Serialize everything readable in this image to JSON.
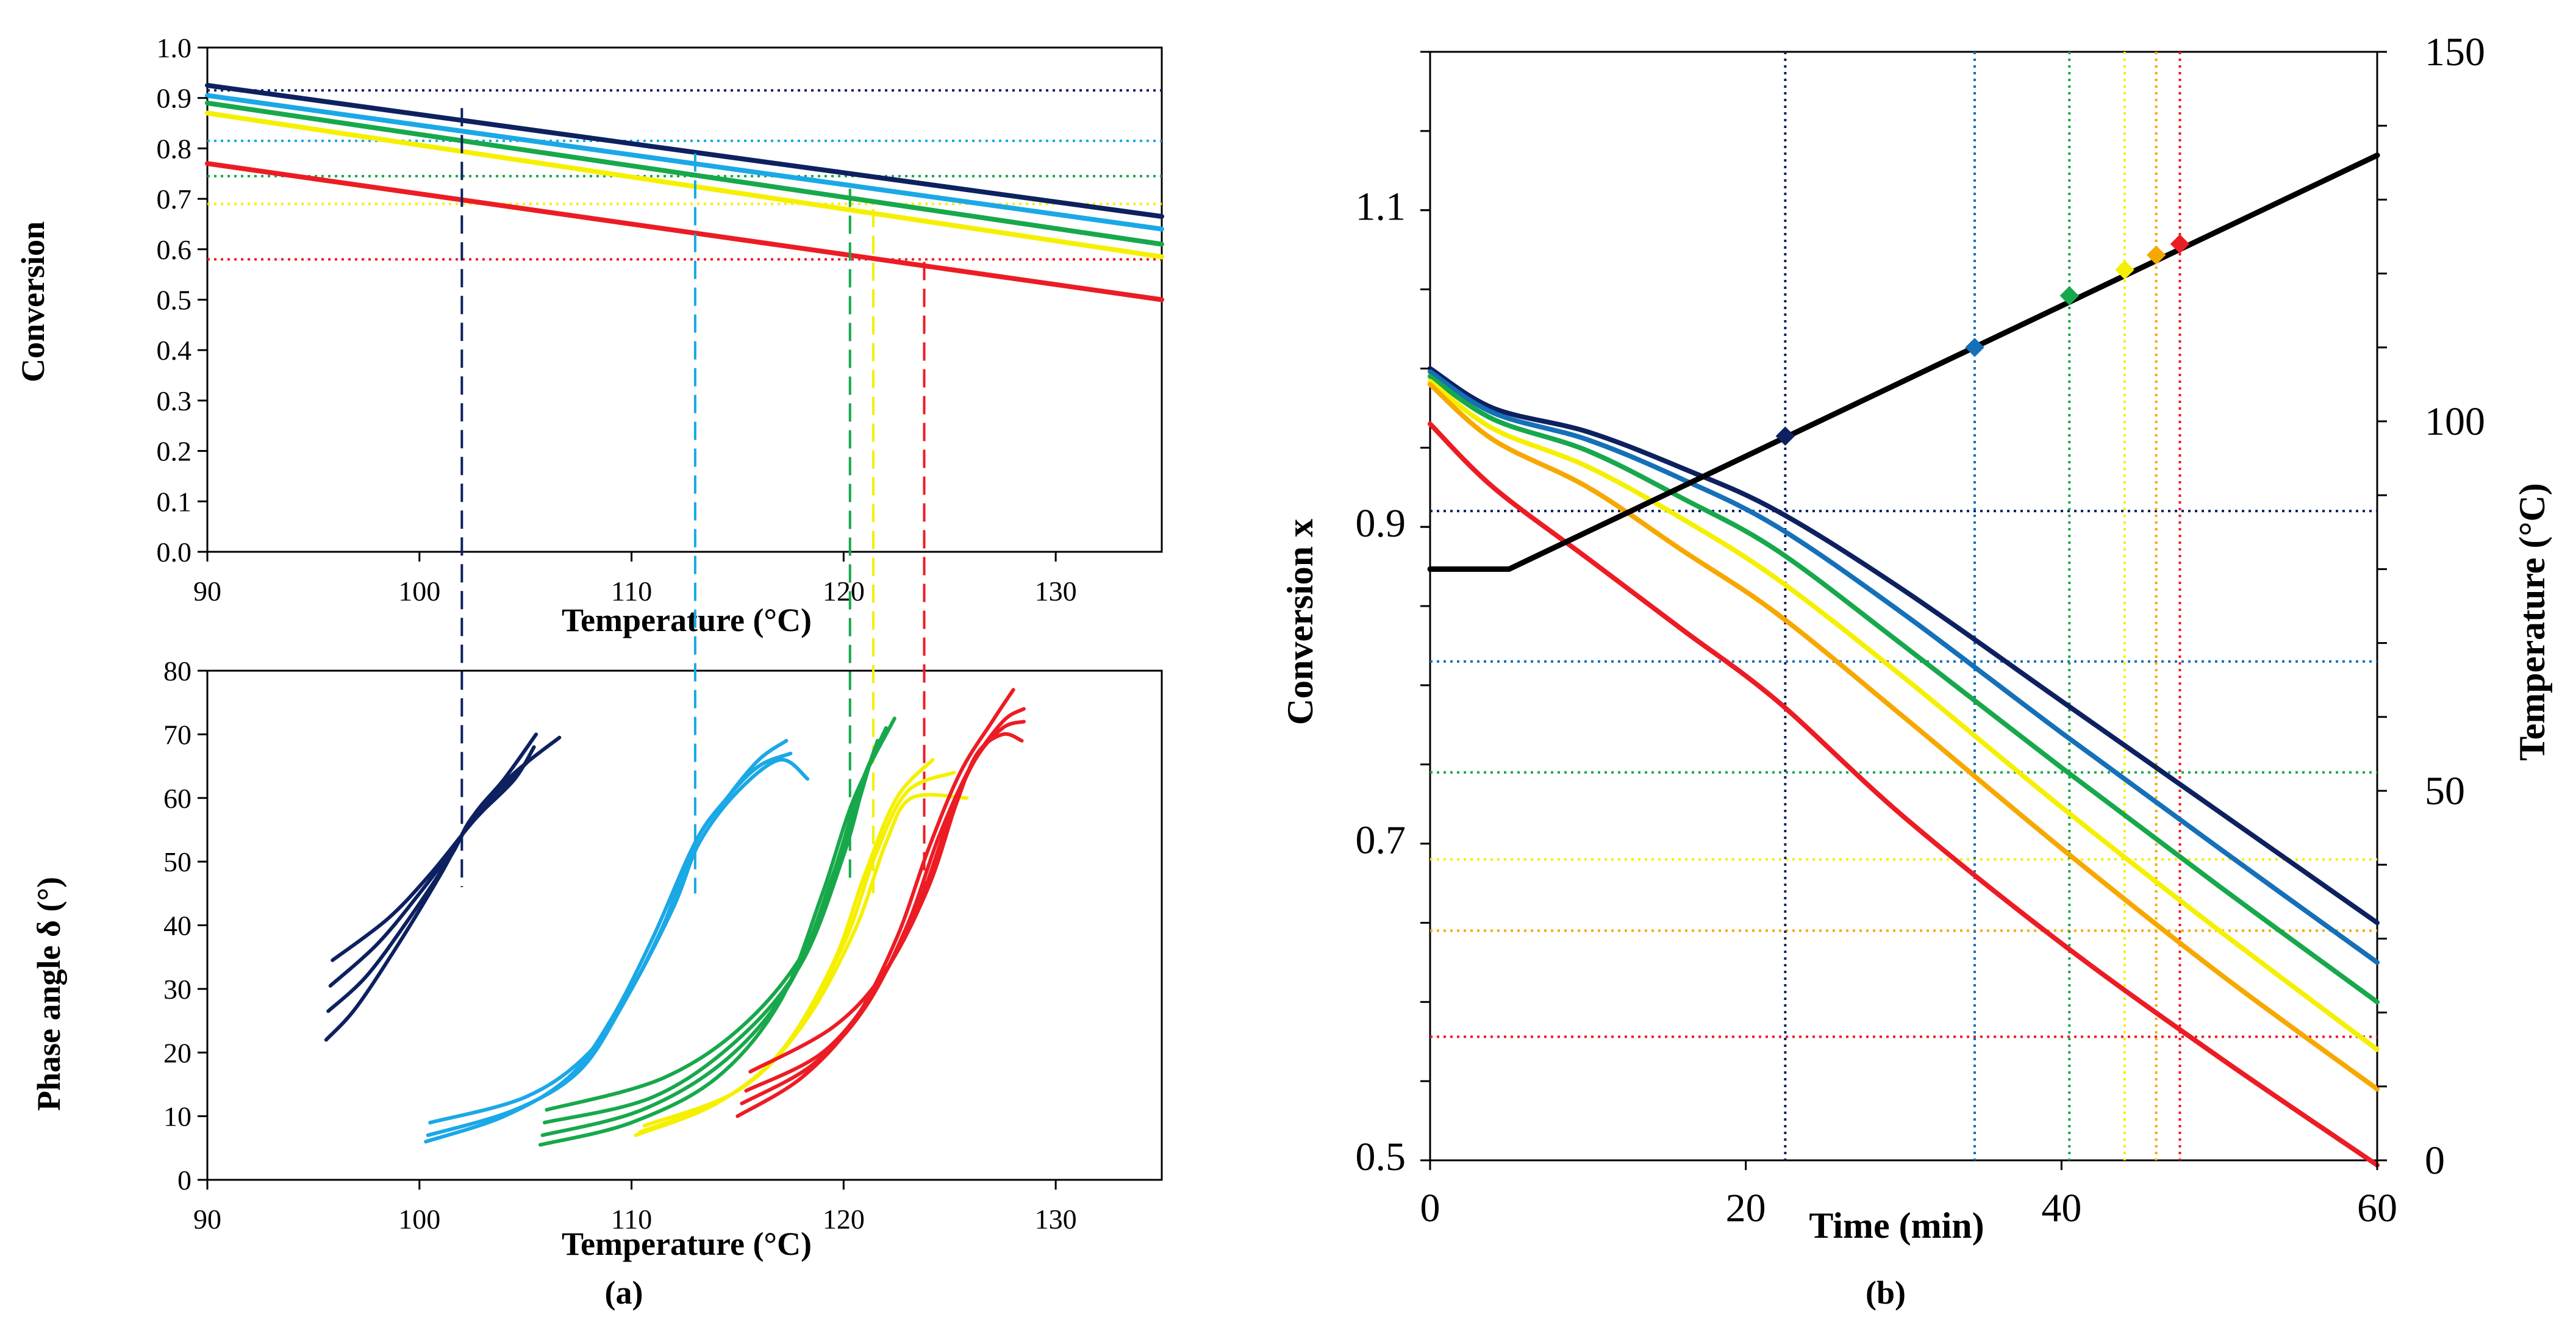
{
  "colors": {
    "navy": "#0d2160",
    "lightblue": "#1aa8e6",
    "mediumblue": "#1570b8",
    "green": "#17a84b",
    "yellow": "#f5f000",
    "orange": "#f7a800",
    "red": "#ec1c24",
    "black": "#000000"
  },
  "panel_labels": {
    "a": "(a)",
    "b": "(b)"
  },
  "chart_data": [
    {
      "id": "a-top",
      "type": "line",
      "xlabel": "Temperature (°C)",
      "ylabel": "Conversion",
      "xlim": [
        90,
        135
      ],
      "ylim": [
        0,
        1
      ],
      "xticks": [
        90,
        100,
        110,
        120,
        130
      ],
      "yticks": [
        "0.0",
        "0.1",
        "0.2",
        "0.3",
        "0.4",
        "0.5",
        "0.6",
        "0.7",
        "0.8",
        "0.9",
        "1.0"
      ],
      "grid": false,
      "series": [
        {
          "color": "navy",
          "x": [
            90,
            135
          ],
          "y": [
            0.925,
            0.665
          ]
        },
        {
          "color": "lightblue",
          "x": [
            90,
            135
          ],
          "y": [
            0.905,
            0.64
          ]
        },
        {
          "color": "green",
          "x": [
            90,
            135
          ],
          "y": [
            0.89,
            0.61
          ]
        },
        {
          "color": "yellow",
          "x": [
            90,
            135
          ],
          "y": [
            0.87,
            0.585
          ]
        },
        {
          "color": "red",
          "x": [
            90,
            135
          ],
          "y": [
            0.77,
            0.5
          ]
        }
      ],
      "hlines": [
        {
          "color": "navy",
          "y": 0.915
        },
        {
          "color": "lightblue",
          "y": 0.815
        },
        {
          "color": "green",
          "y": 0.745
        },
        {
          "color": "yellow",
          "y": 0.69
        },
        {
          "color": "red",
          "y": 0.58
        }
      ]
    },
    {
      "id": "a-bottom",
      "type": "line",
      "xlabel": "Temperature (°C)",
      "ylabel": "Phase angle δ (°)",
      "xlim": [
        90,
        135
      ],
      "ylim": [
        0,
        80
      ],
      "xticks": [
        90,
        100,
        110,
        120,
        130
      ],
      "yticks": [
        0,
        10,
        20,
        30,
        40,
        50,
        60,
        70,
        80
      ],
      "grid": false,
      "series": [
        {
          "color": "navy",
          "x": [
            95.6,
            97,
            99,
            101,
            102.5,
            104,
            105.5
          ],
          "y": [
            22,
            27,
            37,
            48,
            57,
            63,
            70
          ]
        },
        {
          "color": "navy",
          "x": [
            95.7,
            97.5,
            99.5,
            101.5,
            102.5,
            104.5,
            106.6
          ],
          "y": [
            26.5,
            32,
            41,
            51,
            57,
            64,
            69.5
          ]
        },
        {
          "color": "navy",
          "x": [
            95.8,
            98,
            100,
            101.8,
            102.5,
            104,
            105.2
          ],
          "y": [
            30.5,
            37,
            45,
            53,
            57,
            62,
            66
          ]
        },
        {
          "color": "navy",
          "x": [
            95.9,
            98.5,
            100.5,
            102.2,
            103,
            104.5,
            105.4
          ],
          "y": [
            34.5,
            41,
            48,
            55,
            58,
            63,
            68
          ]
        },
        {
          "color": "lightblue",
          "x": [
            100.3,
            104,
            107,
            109,
            111,
            113,
            114.5,
            116,
            117.3
          ],
          "y": [
            6,
            10,
            16,
            25,
            38,
            53,
            60,
            66,
            69
          ]
        },
        {
          "color": "lightblue",
          "x": [
            100.4,
            104.5,
            107.5,
            109.5,
            111.5,
            113,
            114.5,
            116,
            117.5
          ],
          "y": [
            7,
            11,
            17,
            27,
            40,
            53,
            60,
            65,
            67
          ]
        },
        {
          "color": "lightblue",
          "x": [
            100.5,
            105,
            108,
            110,
            112,
            113.2,
            115,
            117,
            118.3
          ],
          "y": [
            9,
            13,
            20,
            30,
            43,
            53,
            61,
            66,
            63
          ]
        },
        {
          "color": "green",
          "x": [
            105.7,
            110,
            114,
            117,
            119,
            120.5,
            122.4
          ],
          "y": [
            5.5,
            9,
            16,
            28,
            45,
            60,
            72.5
          ]
        },
        {
          "color": "green",
          "x": [
            105.8,
            110.5,
            114.5,
            117.5,
            119.5,
            120.8,
            122
          ],
          "y": [
            7,
            11,
            19,
            31,
            48,
            62,
            71
          ]
        },
        {
          "color": "green",
          "x": [
            105.9,
            111,
            115,
            118,
            120,
            121,
            121.6
          ],
          "y": [
            9,
            13,
            22,
            34,
            51,
            63,
            69
          ]
        },
        {
          "color": "green",
          "x": [
            106,
            111.5,
            115.5,
            118.5,
            120.3,
            121.2
          ],
          "y": [
            11,
            16,
            25,
            38,
            55,
            65
          ]
        },
        {
          "color": "yellow",
          "x": [
            110.2,
            114,
            117,
            119.5,
            121,
            122.5,
            124.2
          ],
          "y": [
            7,
            12,
            20,
            34,
            48,
            60,
            66
          ]
        },
        {
          "color": "yellow",
          "x": [
            110.4,
            114.5,
            117.5,
            120,
            121.5,
            123,
            125.2
          ],
          "y": [
            7.5,
            13,
            22,
            37,
            51,
            61,
            64
          ]
        },
        {
          "color": "yellow",
          "x": [
            110.6,
            115,
            118,
            120.5,
            122,
            123.2,
            125.8
          ],
          "y": [
            8.5,
            14,
            24,
            39,
            53,
            60,
            60
          ]
        },
        {
          "color": "red",
          "x": [
            115,
            118,
            120.5,
            122.5,
            124,
            125.5,
            127,
            128
          ],
          "y": [
            10,
            16,
            25,
            38,
            52,
            64,
            72,
            77
          ]
        },
        {
          "color": "red",
          "x": [
            115.2,
            118.5,
            121,
            123,
            124.5,
            126,
            127.5,
            128.5
          ],
          "y": [
            12,
            18,
            27,
            40,
            54,
            65,
            72,
            74
          ]
        },
        {
          "color": "red",
          "x": [
            115.4,
            119,
            121.5,
            123.5,
            125,
            126.2,
            127.5,
            128.5
          ],
          "y": [
            14,
            20,
            30,
            43,
            57,
            66,
            71,
            72
          ]
        },
        {
          "color": "red",
          "x": [
            115.6,
            119.5,
            122,
            124,
            125.3,
            126.3,
            127.5,
            128.4
          ],
          "y": [
            17,
            24,
            33,
            46,
            59,
            67,
            70,
            69
          ]
        }
      ],
      "vlines": [
        {
          "color": "navy",
          "x": 102
        },
        {
          "color": "lightblue",
          "x": 113
        },
        {
          "color": "green",
          "x": 120.3
        },
        {
          "color": "yellow",
          "x": 121.4
        },
        {
          "color": "red",
          "x": 123.8
        }
      ]
    },
    {
      "id": "b",
      "type": "line",
      "xlabel": "Time (min)",
      "ylabel": "Conversion x",
      "y2label": "Temperature (°C)",
      "xlim": [
        0,
        60
      ],
      "ylim": [
        0.5,
        1.2
      ],
      "y2lim": [
        0,
        150
      ],
      "xticks": [
        0,
        20,
        40,
        60
      ],
      "yticks": [
        "0.5",
        "0.7",
        "0.9",
        "1.1"
      ],
      "y2ticks": [
        0,
        50,
        100,
        150
      ],
      "grid": false,
      "series": [
        {
          "color": "navy",
          "x": [
            0,
            4,
            10,
            16,
            22,
            30,
            40,
            50,
            60
          ],
          "y": [
            1.0,
            0.975,
            0.96,
            0.937,
            0.91,
            0.86,
            0.79,
            0.72,
            0.65
          ]
        },
        {
          "color": "mediumblue",
          "x": [
            0,
            4,
            10,
            16,
            22,
            30,
            40,
            50,
            60
          ],
          "y": [
            0.998,
            0.972,
            0.955,
            0.93,
            0.9,
            0.845,
            0.77,
            0.697,
            0.625
          ]
        },
        {
          "color": "green",
          "x": [
            0,
            4,
            10,
            16,
            22,
            30,
            40,
            50,
            60
          ],
          "y": [
            0.995,
            0.968,
            0.948,
            0.918,
            0.885,
            0.825,
            0.748,
            0.673,
            0.6
          ]
        },
        {
          "color": "yellow",
          "x": [
            0,
            4,
            10,
            16,
            22,
            30,
            40,
            50,
            60
          ],
          "y": [
            0.992,
            0.962,
            0.938,
            0.905,
            0.867,
            0.805,
            0.723,
            0.645,
            0.57
          ]
        },
        {
          "color": "orange",
          "x": [
            0,
            4,
            10,
            16,
            22,
            30,
            40,
            50,
            60
          ],
          "y": [
            0.99,
            0.955,
            0.925,
            0.885,
            0.845,
            0.78,
            0.697,
            0.618,
            0.545
          ]
        },
        {
          "color": "red",
          "x": [
            0,
            4,
            10,
            16,
            22,
            30,
            40,
            50,
            60
          ],
          "y": [
            0.965,
            0.925,
            0.88,
            0.835,
            0.79,
            0.717,
            0.637,
            0.565,
            0.497
          ]
        },
        {
          "color": "black",
          "axis": "y2",
          "x": [
            0,
            5,
            60
          ],
          "y": [
            80,
            80,
            136
          ]
        }
      ],
      "markers": [
        {
          "color": "navy",
          "x": 22.5,
          "y2": 98
        },
        {
          "color": "mediumblue",
          "x": 34.5,
          "y2": 110
        },
        {
          "color": "green",
          "x": 40.5,
          "y2": 117
        },
        {
          "color": "yellow",
          "x": 44,
          "y2": 120.5
        },
        {
          "color": "orange",
          "x": 46,
          "y2": 122.5
        },
        {
          "color": "red",
          "x": 47.5,
          "y2": 124
        }
      ],
      "vlines": [
        {
          "color": "navy",
          "x": 22.5
        },
        {
          "color": "mediumblue",
          "x": 34.5
        },
        {
          "color": "green",
          "x": 40.5
        },
        {
          "color": "yellow",
          "x": 44
        },
        {
          "color": "orange",
          "x": 46
        },
        {
          "color": "red",
          "x": 47.5
        }
      ],
      "hlines": [
        {
          "color": "navy",
          "y": 0.91
        },
        {
          "color": "mediumblue",
          "y": 0.815
        },
        {
          "color": "green",
          "y": 0.745
        },
        {
          "color": "yellow",
          "y": 0.69
        },
        {
          "color": "orange",
          "y": 0.645
        },
        {
          "color": "red",
          "y": 0.578
        }
      ]
    }
  ]
}
